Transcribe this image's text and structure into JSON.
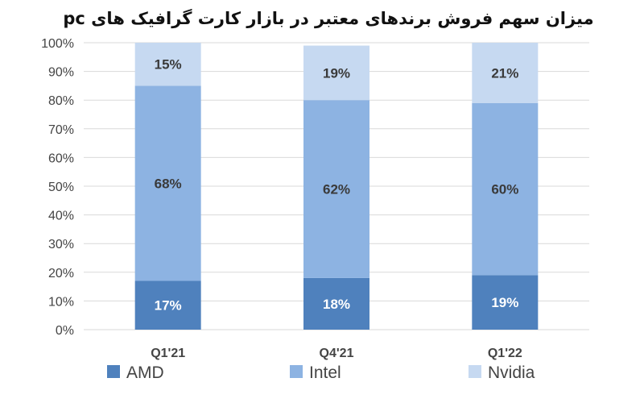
{
  "chart_data": {
    "type": "bar",
    "stacked": true,
    "title": "میزان سهم فروش برندهای معتبر در بازار کارت گرافیک های pc",
    "categories": [
      "Q1'21",
      "Q4'21",
      "Q1'22"
    ],
    "series": [
      {
        "name": "AMD",
        "values": [
          17,
          18,
          19
        ],
        "labels": [
          "17%",
          "18%",
          "19%"
        ],
        "color": "#4f81bd",
        "label_color": "#ffffff"
      },
      {
        "name": "Intel",
        "values": [
          68,
          62,
          60
        ],
        "labels": [
          "68%",
          "62%",
          "60%"
        ],
        "color": "#8db3e2",
        "label_color": "#3a3a3a"
      },
      {
        "name": "Nvidia",
        "values": [
          15,
          19,
          21
        ],
        "labels": [
          "15%",
          "19%",
          "21%"
        ],
        "color": "#c6d9f1",
        "label_color": "#3a3a3a"
      }
    ],
    "ylim": [
      0,
      100
    ],
    "yticks": [
      "0%",
      "10%",
      "20%",
      "30%",
      "40%",
      "50%",
      "60%",
      "70%",
      "80%",
      "90%",
      "100%"
    ],
    "grid": true,
    "legend_position": "bottom"
  }
}
